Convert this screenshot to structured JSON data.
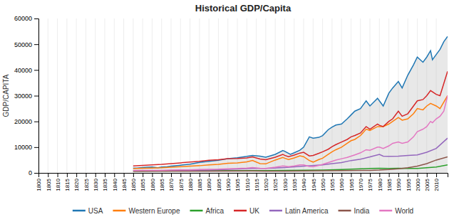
{
  "chart_data": {
    "type": "line",
    "title": "Historical GDP/Capita",
    "ylabel": "GDP/CAPITA",
    "xlim": [
      1800,
      2016
    ],
    "xticks": [
      1800,
      1805,
      1810,
      1815,
      1820,
      1825,
      1830,
      1835,
      1840,
      1845,
      1850,
      1855,
      1860,
      1865,
      1870,
      1875,
      1880,
      1885,
      1890,
      1895,
      1900,
      1905,
      1910,
      1915,
      1920,
      1925,
      1930,
      1935,
      1940,
      1945,
      1950,
      1955,
      1960,
      1965,
      1970,
      1975,
      1980,
      1985,
      1990,
      1995,
      2000,
      2005,
      2010
    ],
    "ylim": [
      0,
      60000
    ],
    "yticks": [
      0,
      10000,
      20000,
      30000,
      40000,
      50000,
      60000
    ],
    "grid": "x",
    "legend": "bottom",
    "series": [
      {
        "name": "USA",
        "type": "area",
        "x": [
          1850,
          1852,
          1855,
          1857,
          1860,
          1863,
          1865,
          1868,
          1870,
          1875,
          1880,
          1885,
          1890,
          1895,
          1900,
          1905,
          1910,
          1913,
          1917,
          1920,
          1925,
          1929,
          1930,
          1933,
          1935,
          1938,
          1940,
          1943,
          1945,
          1948,
          1950,
          1953,
          1955,
          1957,
          1960,
          1963,
          1965,
          1967,
          1970,
          1973,
          1975,
          1979,
          1980,
          1982,
          1985,
          1987,
          1990,
          1992,
          1995,
          1998,
          2000,
          2003,
          2005,
          2007,
          2008,
          2010,
          2012,
          2014,
          2016
        ],
        "values": [
          1849,
          1900,
          2100,
          2200,
          2300,
          2000,
          2300,
          2400,
          2600,
          3000,
          3400,
          4100,
          4500,
          4900,
          5500,
          5900,
          6400,
          6800,
          6500,
          6100,
          7200,
          8700,
          8400,
          7200,
          7800,
          8800,
          10000,
          14000,
          13500,
          13800,
          14500,
          16800,
          17800,
          18600,
          19000,
          21000,
          22500,
          24000,
          25000,
          28000,
          26000,
          29000,
          28000,
          26000,
          31000,
          33000,
          35500,
          33000,
          38000,
          42000,
          45000,
          43000,
          45000,
          47500,
          44000,
          46000,
          48000,
          51000,
          53000
        ]
      },
      {
        "name": "Western Europe",
        "x": [
          1850,
          1855,
          1860,
          1865,
          1870,
          1875,
          1880,
          1885,
          1890,
          1895,
          1900,
          1905,
          1910,
          1913,
          1917,
          1920,
          1925,
          1929,
          1930,
          1932,
          1935,
          1938,
          1940,
          1943,
          1945,
          1948,
          1950,
          1953,
          1955,
          1957,
          1960,
          1963,
          1965,
          1967,
          1970,
          1973,
          1975,
          1979,
          1980,
          1982,
          1985,
          1987,
          1990,
          1992,
          1995,
          1998,
          2000,
          2003,
          2005,
          2007,
          2010,
          2012,
          2016
        ],
        "values": [
          1650,
          1800,
          1900,
          2000,
          2200,
          2400,
          2600,
          2800,
          3100,
          3300,
          3700,
          3900,
          4300,
          4800,
          3600,
          3500,
          5000,
          6000,
          5700,
          5200,
          5800,
          6600,
          6300,
          4800,
          4200,
          5200,
          5700,
          7200,
          8200,
          9000,
          10000,
          11500,
          12500,
          13000,
          14500,
          17000,
          16500,
          18000,
          18000,
          18000,
          19000,
          20000,
          21500,
          20500,
          21000,
          23000,
          25000,
          24500,
          26000,
          27000,
          26000,
          25000,
          30000
        ]
      },
      {
        "name": "Africa",
        "x": [
          1850,
          1870,
          1890,
          1913,
          1920,
          1930,
          1940,
          1950,
          1960,
          1970,
          1975,
          1980,
          1985,
          1990,
          1995,
          2000,
          2005,
          2010,
          2016
        ],
        "values": [
          700,
          750,
          800,
          900,
          900,
          1000,
          1050,
          1100,
          1300,
          1600,
          1700,
          1800,
          1700,
          1800,
          1700,
          1750,
          2000,
          2300,
          3100
        ]
      },
      {
        "name": "UK",
        "x": [
          1850,
          1855,
          1860,
          1865,
          1870,
          1875,
          1880,
          1885,
          1890,
          1895,
          1900,
          1905,
          1910,
          1913,
          1917,
          1920,
          1925,
          1929,
          1930,
          1932,
          1935,
          1938,
          1940,
          1943,
          1945,
          1948,
          1950,
          1953,
          1955,
          1957,
          1960,
          1963,
          1965,
          1967,
          1970,
          1973,
          1975,
          1979,
          1980,
          1982,
          1985,
          1987,
          1990,
          1992,
          1995,
          1998,
          2000,
          2003,
          2005,
          2007,
          2010,
          2012,
          2016
        ],
        "values": [
          2700,
          2900,
          3100,
          3300,
          3600,
          3900,
          4200,
          4500,
          4900,
          5100,
          5500,
          5600,
          5800,
          6200,
          5400,
          5100,
          6100,
          7200,
          6800,
          6300,
          6900,
          7700,
          8000,
          6600,
          6800,
          7600,
          8200,
          9200,
          10200,
          11000,
          12000,
          13000,
          14000,
          14500,
          15500,
          18000,
          17000,
          19000,
          18500,
          18000,
          20000,
          21000,
          24000,
          22000,
          23000,
          26000,
          28000,
          28500,
          30000,
          32000,
          30500,
          30000,
          39500
        ]
      },
      {
        "name": "Latin America",
        "x": [
          1850,
          1870,
          1890,
          1913,
          1920,
          1930,
          1940,
          1950,
          1955,
          1960,
          1965,
          1970,
          1975,
          1980,
          1982,
          1985,
          1990,
          1995,
          2000,
          2005,
          2010,
          2016
        ],
        "values": [
          800,
          900,
          1100,
          1700,
          1700,
          2100,
          2600,
          3100,
          3600,
          4000,
          4800,
          5300,
          6200,
          7200,
          6500,
          6400,
          6500,
          6800,
          7000,
          8000,
          9500,
          13500
        ]
      },
      {
        "name": "India",
        "x": [
          1850,
          1870,
          1890,
          1913,
          1920,
          1930,
          1940,
          1950,
          1960,
          1970,
          1975,
          1980,
          1985,
          1990,
          1995,
          2000,
          2005,
          2010,
          2016
        ],
        "values": [
          650,
          670,
          700,
          730,
          680,
          720,
          780,
          820,
          900,
          1000,
          1000,
          1100,
          1300,
          1600,
          2000,
          2600,
          3600,
          5000,
          6200
        ]
      },
      {
        "name": "World",
        "x": [
          1850,
          1855,
          1860,
          1865,
          1870,
          1875,
          1880,
          1885,
          1890,
          1895,
          1900,
          1905,
          1910,
          1913,
          1917,
          1920,
          1925,
          1929,
          1930,
          1932,
          1935,
          1938,
          1940,
          1943,
          1945,
          1948,
          1950,
          1953,
          1955,
          1957,
          1960,
          1963,
          1965,
          1967,
          1970,
          1973,
          1975,
          1979,
          1980,
          1982,
          1985,
          1987,
          1990,
          1992,
          1995,
          1998,
          2000,
          2003,
          2005,
          2007,
          2008,
          2010,
          2012,
          2014,
          2016
        ],
        "values": [
          900,
          950,
          1000,
          1000,
          1100,
          1150,
          1200,
          1300,
          1400,
          1450,
          1600,
          1700,
          1900,
          2100,
          1800,
          1700,
          2200,
          2700,
          2600,
          2400,
          2700,
          3100,
          3100,
          2500,
          2400,
          2900,
          3300,
          4000,
          4500,
          5000,
          5500,
          6000,
          6500,
          7000,
          7800,
          9000,
          8800,
          10000,
          10000,
          9500,
          10500,
          11500,
          12000,
          11500,
          12000,
          14000,
          16000,
          17000,
          18000,
          20000,
          19500,
          21000,
          22000,
          24000,
          30000
        ]
      }
    ]
  }
}
